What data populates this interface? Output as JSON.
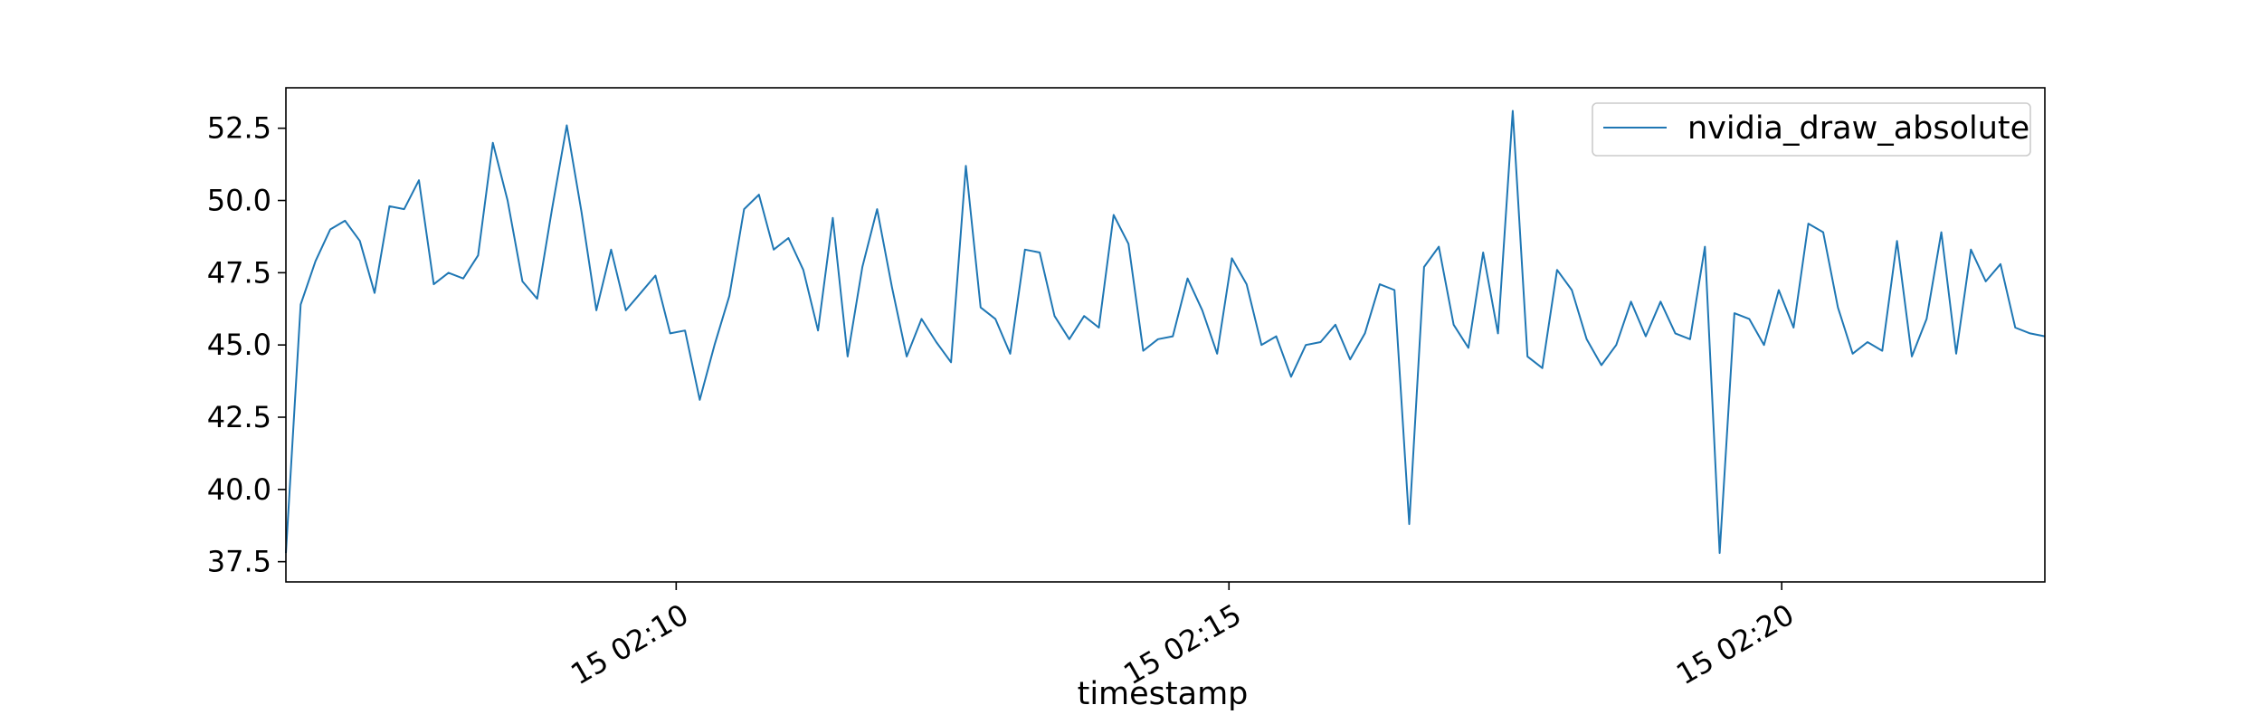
{
  "chart_data": {
    "type": "line",
    "title": "",
    "xlabel": "timestamp",
    "ylabel": "",
    "x_tick_labels": [
      "15 02:10",
      "15 02:15",
      "15 02:20"
    ],
    "x_tick_minutes": [
      10,
      15,
      20
    ],
    "x_range_minutes": [
      6.47,
      22.38
    ],
    "y_ticks": [
      37.5,
      40.0,
      42.5,
      45.0,
      47.5,
      50.0,
      52.5
    ],
    "y_tick_labels": [
      "37.5",
      "40.0",
      "42.5",
      "45.0",
      "47.5",
      "50.0",
      "52.5"
    ],
    "ylim": [
      36.8,
      53.9
    ],
    "grid": false,
    "legend_position": "top-right",
    "series": [
      {
        "name": "nvidia_draw_absolute",
        "color": "#1f77b4",
        "values": [
          37.8,
          46.4,
          47.9,
          49.0,
          49.3,
          48.6,
          46.8,
          49.8,
          49.7,
          50.7,
          47.1,
          47.5,
          47.3,
          48.1,
          52.0,
          50.0,
          47.2,
          46.6,
          49.7,
          52.6,
          49.6,
          46.2,
          48.3,
          46.2,
          46.8,
          47.4,
          45.4,
          45.5,
          43.1,
          45.0,
          46.7,
          49.7,
          50.2,
          48.3,
          48.7,
          47.6,
          45.5,
          49.4,
          44.6,
          47.7,
          49.7,
          47.0,
          44.6,
          45.9,
          45.1,
          44.4,
          51.2,
          46.3,
          45.9,
          44.7,
          48.3,
          48.2,
          46.0,
          45.2,
          46.0,
          45.6,
          49.5,
          48.5,
          44.8,
          45.2,
          45.3,
          47.3,
          46.2,
          44.7,
          48.0,
          47.1,
          45.0,
          45.3,
          43.9,
          45.0,
          45.1,
          45.7,
          44.5,
          45.4,
          47.1,
          46.9,
          38.8,
          47.7,
          48.4,
          45.7,
          44.9,
          48.2,
          45.4,
          53.1,
          44.6,
          44.2,
          47.6,
          46.9,
          45.2,
          44.3,
          45.0,
          46.5,
          45.3,
          46.5,
          45.4,
          45.2,
          48.4,
          37.8,
          46.1,
          45.9,
          45.0,
          46.9,
          45.6,
          49.2,
          48.9,
          46.3,
          44.7,
          45.1,
          44.8,
          48.6,
          44.6,
          45.9,
          48.9,
          44.7,
          48.3,
          47.2,
          47.8,
          45.6,
          45.4,
          45.3
        ]
      }
    ]
  }
}
